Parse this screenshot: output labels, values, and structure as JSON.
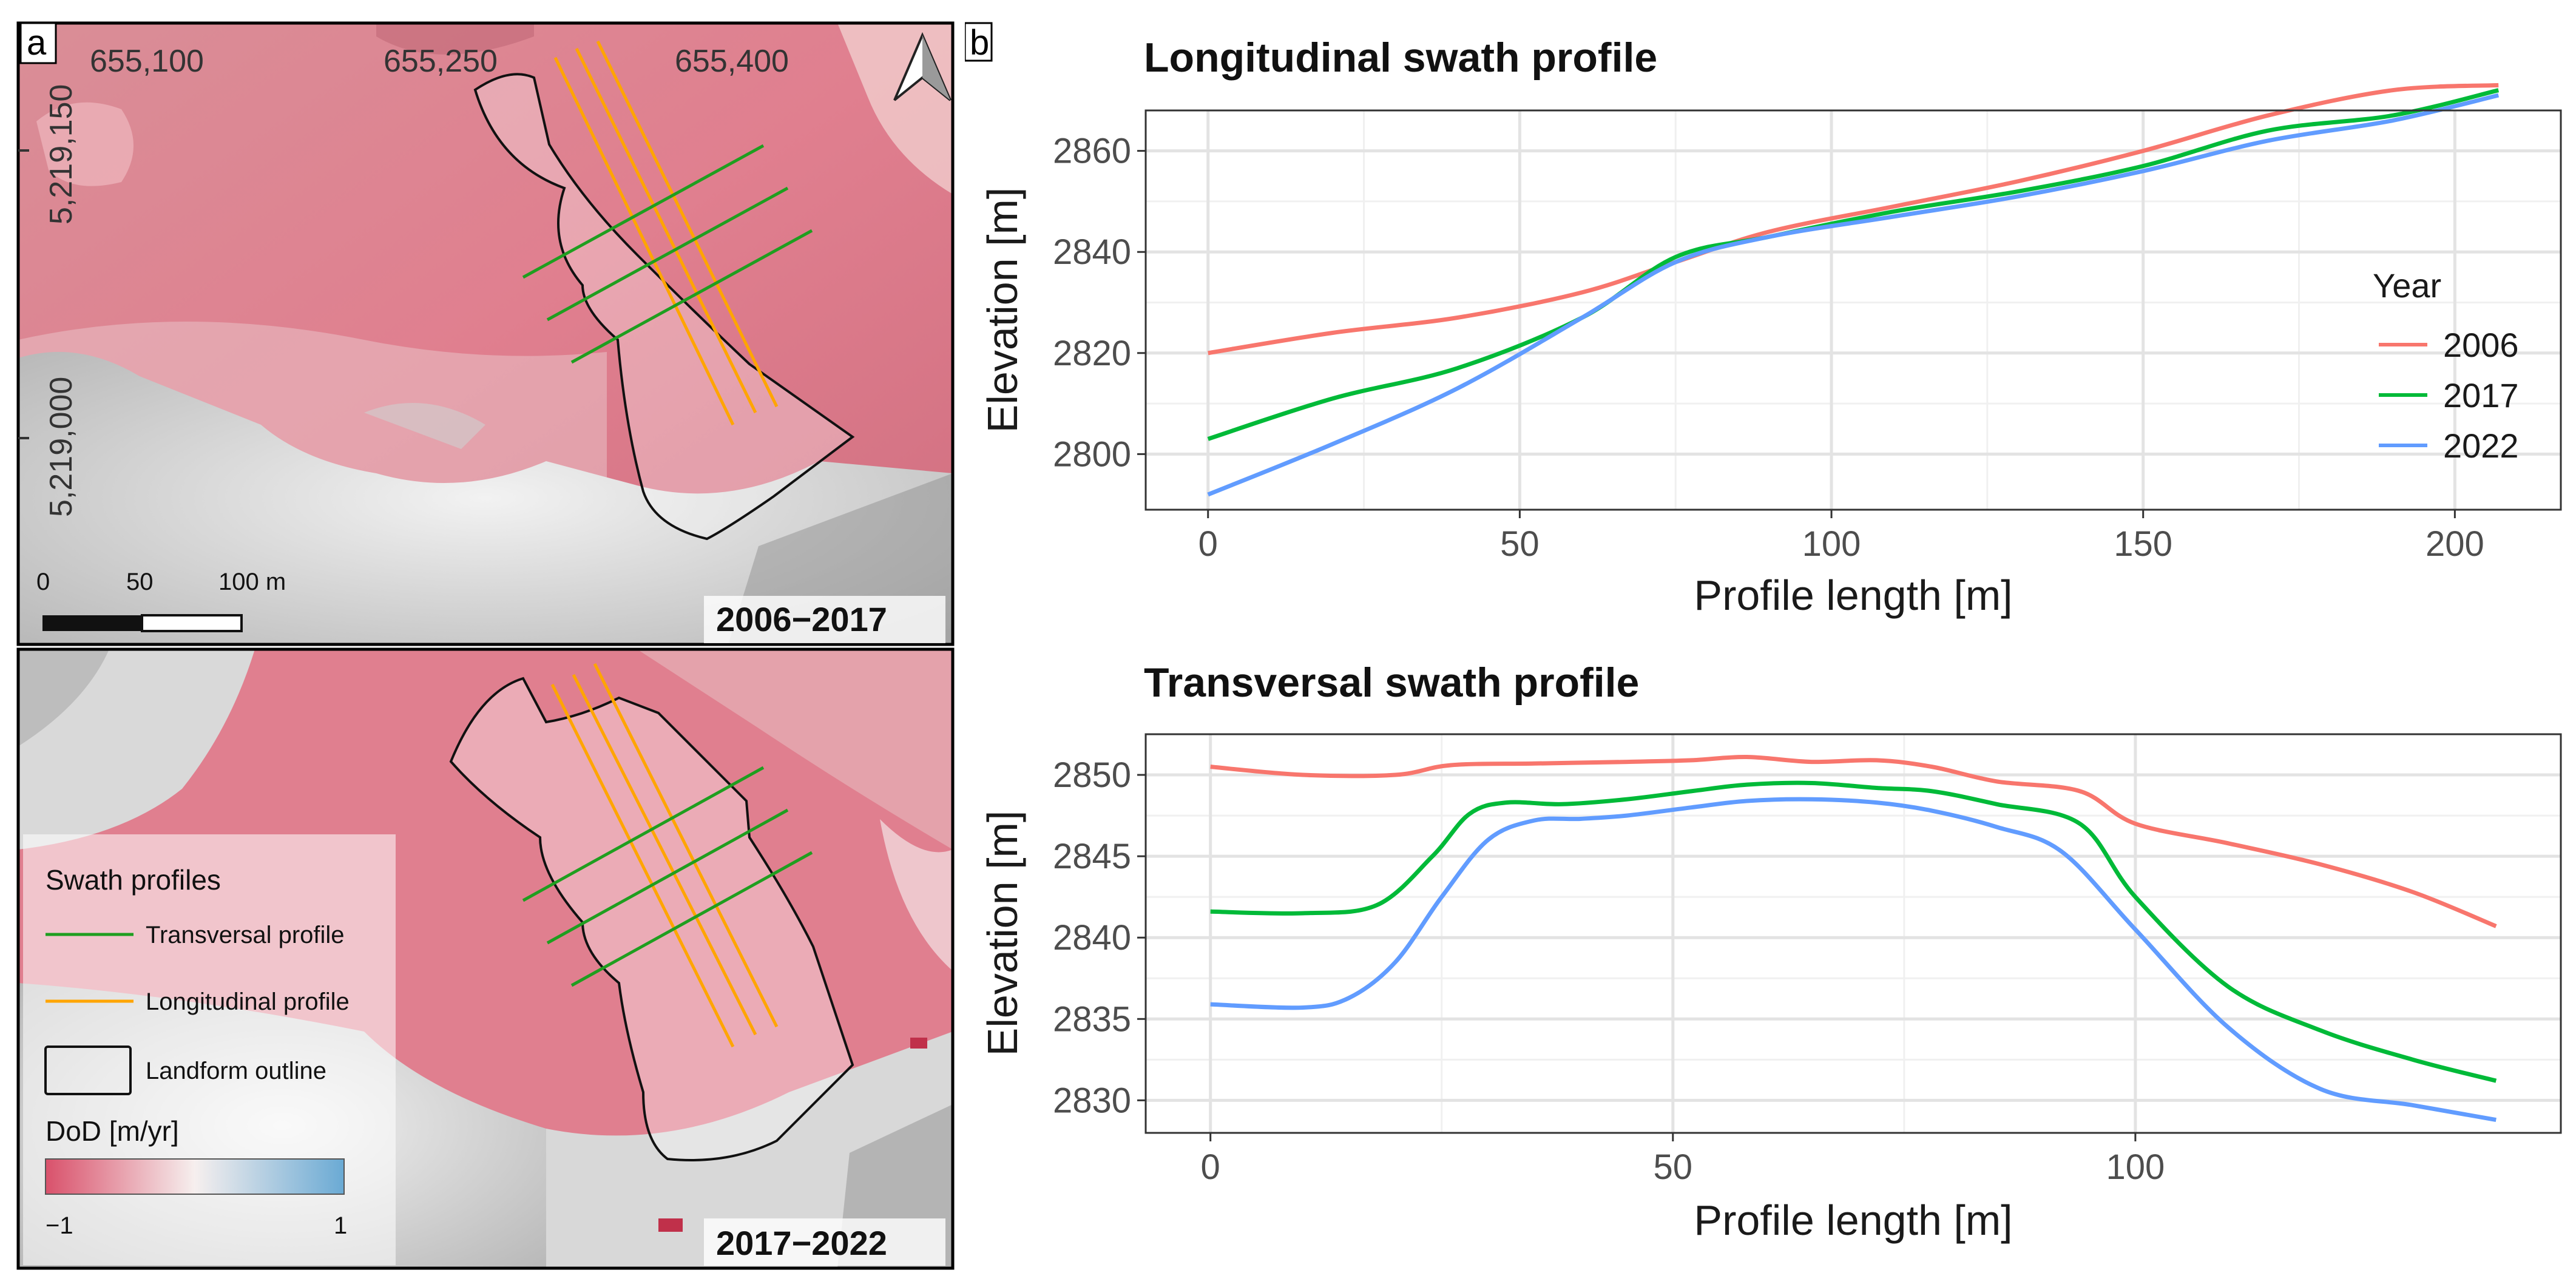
{
  "panel_a": {
    "letter": "a",
    "x_ticks": [
      "655,100",
      "655,250",
      "655,400"
    ],
    "y_ticks": [
      "5,219,150",
      "5,219,000"
    ],
    "scale_labels": [
      "0",
      "50",
      "100 m"
    ],
    "top_period": "2006−2017",
    "bottom_period": "2017−2022",
    "north_arrow": "north-arrow-icon",
    "legend": {
      "title": "Swath profiles",
      "transversal": "Transversal profile",
      "longitudinal": "Longitudinal profile",
      "outline": "Landform outline",
      "dod_title": "DoD [m/yr]",
      "dod_min": "−1",
      "dod_max": "1"
    },
    "colors": {
      "loss": "#d9516b",
      "gain": "#6aaad4",
      "transversal": "#1f9e1f",
      "longitudinal": "#ffa500",
      "outline": "#111111"
    }
  },
  "panel_b": {
    "letter": "b",
    "legend": {
      "title": "Year"
    }
  },
  "chart_data": [
    {
      "type": "line",
      "title": "Longitudinal swath profile",
      "xlabel": "Profile length [m]",
      "ylabel": "Elevation [m]",
      "xlim": [
        -10,
        217
      ],
      "ylim": [
        2789,
        2868
      ],
      "x_ticks": [
        0,
        50,
        100,
        150,
        200
      ],
      "y_ticks": [
        2800,
        2820,
        2840,
        2860
      ],
      "grid": true,
      "legend_position": "right",
      "series": [
        {
          "name": "2006",
          "color": "#f8766d",
          "x": [
            0,
            20,
            40,
            60,
            75,
            90,
            110,
            130,
            150,
            170,
            190,
            207
          ],
          "y": [
            2820,
            2824,
            2827,
            2832,
            2838,
            2844,
            2849,
            2854,
            2860,
            2867,
            2872,
            2873
          ]
        },
        {
          "name": "2017",
          "color": "#00ba38",
          "x": [
            0,
            20,
            40,
            60,
            75,
            90,
            110,
            130,
            150,
            170,
            190,
            207
          ],
          "y": [
            2803,
            2811,
            2817,
            2827,
            2839,
            2843,
            2848,
            2852,
            2857,
            2864,
            2867,
            2872
          ]
        },
        {
          "name": "2022",
          "color": "#619cff",
          "x": [
            0,
            20,
            40,
            60,
            75,
            90,
            110,
            130,
            150,
            170,
            190,
            207
          ],
          "y": [
            2792,
            2802,
            2813,
            2827,
            2838,
            2843,
            2847,
            2851,
            2856,
            2862,
            2866,
            2871
          ]
        }
      ]
    },
    {
      "type": "line",
      "title": "Transversal swath profile",
      "xlabel": "Profile length [m]",
      "ylabel": "Elevation [m]",
      "xlim": [
        -7,
        146
      ],
      "ylim": [
        2828,
        2852.5
      ],
      "x_ticks": [
        0,
        50,
        100
      ],
      "y_ticks": [
        2830,
        2835,
        2840,
        2845,
        2850
      ],
      "grid": true,
      "series": [
        {
          "name": "2006",
          "color": "#f8766d",
          "x": [
            0,
            10,
            20,
            26,
            35,
            45,
            52,
            58,
            65,
            72,
            78,
            85,
            94,
            100,
            110,
            120,
            130,
            139
          ],
          "y": [
            2850.5,
            2850.0,
            2850.0,
            2850.6,
            2850.7,
            2850.8,
            2850.9,
            2851.1,
            2850.8,
            2850.9,
            2850.5,
            2849.6,
            2849.0,
            2847.0,
            2845.8,
            2844.5,
            2842.8,
            2840.7
          ]
        },
        {
          "name": "2017",
          "color": "#00ba38",
          "x": [
            0,
            10,
            18,
            24,
            28,
            32,
            38,
            45,
            52,
            58,
            65,
            72,
            78,
            85,
            94,
            100,
            110,
            120,
            130,
            139
          ],
          "y": [
            2841.6,
            2841.5,
            2842.0,
            2845.0,
            2847.6,
            2848.3,
            2848.2,
            2848.5,
            2849.0,
            2849.4,
            2849.5,
            2849.2,
            2849.0,
            2848.2,
            2847.0,
            2842.5,
            2837.0,
            2834.3,
            2832.5,
            2831.2
          ]
        },
        {
          "name": "2022",
          "color": "#619cff",
          "x": [
            0,
            10,
            15,
            20,
            25,
            30,
            35,
            40,
            45,
            52,
            58,
            65,
            72,
            78,
            85,
            92,
            100,
            110,
            120,
            130,
            139
          ],
          "y": [
            2835.9,
            2835.7,
            2836.3,
            2838.5,
            2842.5,
            2846.0,
            2847.2,
            2847.3,
            2847.5,
            2848.0,
            2848.4,
            2848.5,
            2848.3,
            2847.8,
            2846.8,
            2845.3,
            2840.5,
            2834.5,
            2830.7,
            2829.7,
            2828.8
          ]
        }
      ]
    }
  ]
}
